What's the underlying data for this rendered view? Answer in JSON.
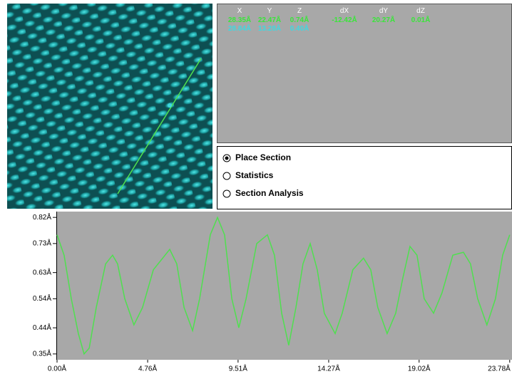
{
  "readout": {
    "headers": [
      "X",
      "Y",
      "Z",
      "dX",
      "dY",
      "dZ"
    ],
    "row1": [
      "28.35Å",
      "22.47Å",
      "0.74Å",
      "-12.42Å",
      "20.27Å",
      "0.01Å"
    ],
    "row2": [
      "28.84Å",
      "13.28Å",
      "0.40Å"
    ]
  },
  "options": [
    {
      "label": "Place Section",
      "selected": true
    },
    {
      "label": "Statistics",
      "selected": false
    },
    {
      "label": "Section Analysis",
      "selected": false
    }
  ],
  "profile": {
    "color": "#4fe04f",
    "xlim": [
      0,
      23.9
    ],
    "ylim": [
      0.33,
      0.84
    ],
    "xticks": [
      {
        "value": 0,
        "label": "0.00Å"
      },
      {
        "value": 4.76,
        "label": "4.76Å"
      },
      {
        "value": 9.51,
        "label": "9.51Å"
      },
      {
        "value": 14.27,
        "label": "14.27Å"
      },
      {
        "value": 19.02,
        "label": "19.02Å"
      },
      {
        "value": 23.78,
        "label": "23.78Å"
      }
    ],
    "yticks": [
      {
        "value": 0.82,
        "label": "0.82Å"
      },
      {
        "value": 0.73,
        "label": "0.73Å"
      },
      {
        "value": 0.63,
        "label": "0.63Å"
      },
      {
        "value": 0.54,
        "label": "0.54Å"
      },
      {
        "value": 0.44,
        "label": "0.44Å"
      },
      {
        "value": 0.35,
        "label": "0.35Å"
      }
    ],
    "x": [
      0,
      0.37,
      0.75,
      1.12,
      1.42,
      1.69,
      2.06,
      2.55,
      2.92,
      3.18,
      3.56,
      4.04,
      4.49,
      5.06,
      5.92,
      6.29,
      6.67,
      7.12,
      7.49,
      8.05,
      8.43,
      8.8,
      9.18,
      9.55,
      9.93,
      10.49,
      11.05,
      11.42,
      11.8,
      12.17,
      12.55,
      12.92,
      13.3,
      13.67,
      14.04,
      14.61,
      14.98,
      15.54,
      16.1,
      16.48,
      16.85,
      17.34,
      17.79,
      18.16,
      18.54,
      18.91,
      19.29,
      19.78,
      20.22,
      20.79,
      21.35,
      21.72,
      22.1,
      22.58,
      23.03,
      23.41,
      23.78
    ],
    "values": [
      0.76,
      0.69,
      0.54,
      0.42,
      0.35,
      0.37,
      0.51,
      0.66,
      0.69,
      0.66,
      0.54,
      0.45,
      0.51,
      0.64,
      0.71,
      0.66,
      0.51,
      0.43,
      0.54,
      0.76,
      0.82,
      0.76,
      0.54,
      0.44,
      0.54,
      0.73,
      0.76,
      0.69,
      0.49,
      0.38,
      0.51,
      0.66,
      0.73,
      0.64,
      0.49,
      0.42,
      0.49,
      0.64,
      0.68,
      0.64,
      0.51,
      0.42,
      0.49,
      0.61,
      0.72,
      0.69,
      0.54,
      0.49,
      0.56,
      0.69,
      0.7,
      0.66,
      0.54,
      0.45,
      0.54,
      0.69,
      0.76
    ]
  }
}
